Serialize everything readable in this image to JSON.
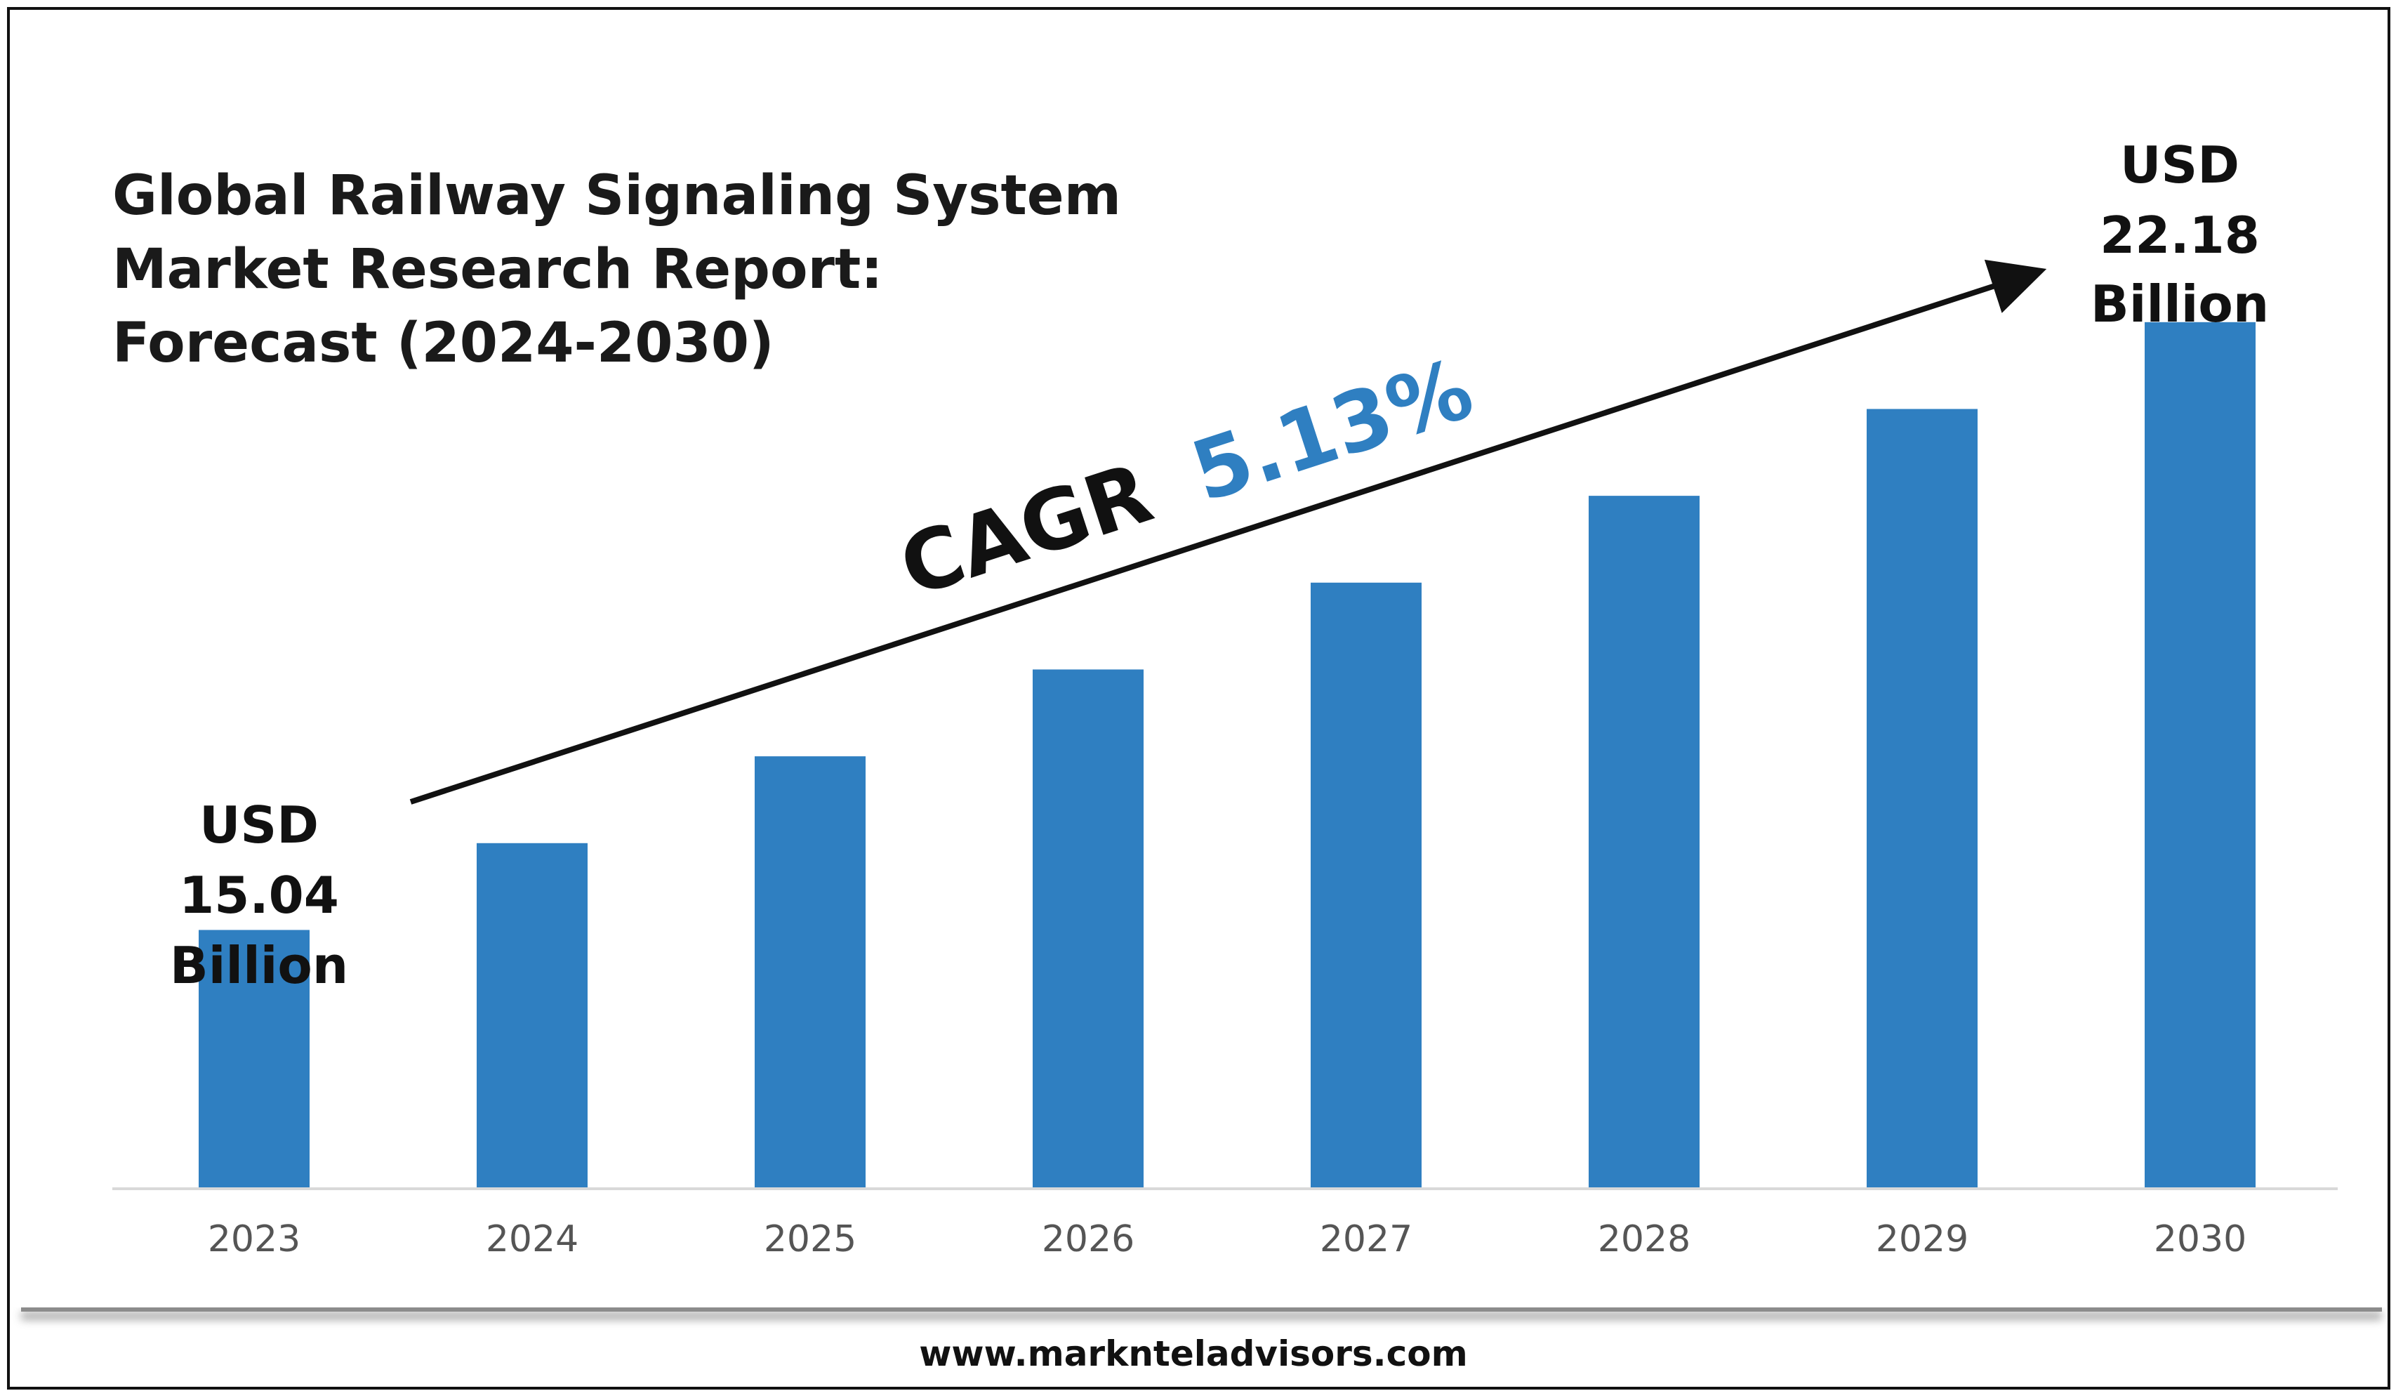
{
  "title_lines": [
    "Global Railway Signaling System",
    "Market Research Report:",
    "Forecast (2024-2030)"
  ],
  "cagr": {
    "label": "CAGR",
    "value": "5.13%"
  },
  "start_label": [
    "USD",
    "15.04",
    "Billion"
  ],
  "end_label": [
    "USD",
    "22.18",
    "Billion"
  ],
  "footer": {
    "url": "www.marknteladvisors.com"
  },
  "colors": {
    "bar": "#2f7fc1",
    "cagr_value": "#2f7fc1",
    "axis": "#d9d9d9"
  },
  "chart_data": {
    "type": "bar",
    "categories": [
      "2023",
      "2024",
      "2025",
      "2026",
      "2027",
      "2028",
      "2029",
      "2030"
    ],
    "values": [
      15.04,
      16.06,
      17.08,
      18.1,
      19.12,
      20.14,
      21.16,
      22.18
    ],
    "ylim": [
      12,
      22.5
    ],
    "grid": false,
    "legend": "none"
  }
}
